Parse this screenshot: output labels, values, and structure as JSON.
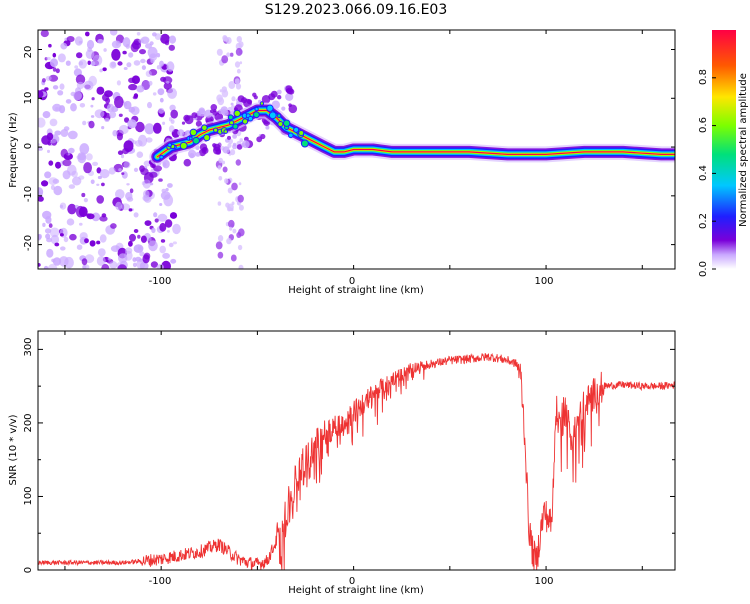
{
  "title": "S129.2023.066.09.16.E03",
  "spectrogram": {
    "xlabel": "Height of straight line (km)",
    "ylabel": "Frequency (Hz)",
    "x_ticks": [
      "-100",
      "0",
      "100"
    ],
    "y_ticks": [
      "20",
      "10",
      "0",
      "-10",
      "-20"
    ],
    "colorbar": {
      "label": "Normalized spectral amplitude",
      "ticks": [
        "0.0",
        "0.2",
        "0.4",
        "0.6",
        "0.8"
      ]
    }
  },
  "chart_data": [
    {
      "type": "heatmap",
      "title": "",
      "xlabel": "Height of straight line (km)",
      "ylabel": "Frequency (Hz)",
      "xlim": [
        -164,
        167
      ],
      "ylim": [
        -25,
        24
      ],
      "colorbar_range": [
        0.0,
        1.0
      ],
      "colormap": [
        "#7a00d9",
        "#1f1fff",
        "#00c8ff",
        "#00e07a",
        "#7cff00",
        "#ffe600",
        "#ff5a00",
        "#ff0044"
      ],
      "ridge": {
        "x": [
          -102,
          -95,
          -90,
          -85,
          -80,
          -75,
          -70,
          -65,
          -60,
          -55,
          -50,
          -45,
          -40,
          -35,
          -30,
          -25,
          -20,
          -15,
          -10,
          -5,
          0,
          5,
          10,
          20,
          40,
          60,
          80,
          90,
          100,
          120,
          140,
          160,
          167
        ],
        "y": [
          -2,
          0,
          0.5,
          1,
          2.5,
          3.5,
          4,
          4.5,
          5.5,
          6.5,
          7.5,
          7.5,
          6,
          4,
          3,
          2,
          1,
          0,
          -1,
          -1,
          -0.5,
          -0.5,
          -0.5,
          -1,
          -1,
          -1,
          -1.5,
          -1.5,
          -1.5,
          -1,
          -1,
          -1.5,
          -1.5
        ],
        "peak_amplitude": 0.9
      },
      "noise_region_x": [
        -164,
        -92
      ]
    },
    {
      "type": "line",
      "title": "",
      "xlabel": "Height of straight line (km)",
      "ylabel": "SNR (10 * v/v)",
      "x_ticks": [
        "-100",
        "0",
        "100"
      ],
      "y_ticks": [
        "300",
        "200",
        "100",
        "0"
      ],
      "xlim": [
        -164,
        167
      ],
      "ylim": [
        0,
        325
      ],
      "color": "#ee3333",
      "series": [
        {
          "x": [
            -164,
            -140,
            -120,
            -110,
            -100,
            -90,
            -80,
            -75,
            -70,
            -65,
            -60,
            -55,
            -50,
            -45,
            -40,
            -35,
            -30,
            -25,
            -20,
            -15,
            -10,
            -5,
            0,
            5,
            10,
            15,
            20,
            25,
            30,
            40,
            50,
            60,
            70,
            75,
            80,
            85,
            87,
            89,
            91,
            93,
            95,
            97,
            99,
            101,
            103,
            105,
            107,
            110,
            113,
            116,
            120,
            125,
            130,
            140,
            150,
            160,
            167
          ],
          "y": [
            10,
            10,
            10,
            12,
            15,
            20,
            25,
            30,
            35,
            25,
            15,
            10,
            8,
            12,
            40,
            80,
            120,
            150,
            170,
            185,
            195,
            205,
            215,
            225,
            240,
            250,
            260,
            265,
            275,
            280,
            285,
            287,
            290,
            288,
            285,
            280,
            260,
            180,
            60,
            25,
            10,
            50,
            80,
            70,
            60,
            220,
            200,
            220,
            180,
            200,
            225,
            240,
            250,
            252,
            250,
            250,
            252
          ]
        }
      ]
    }
  ]
}
